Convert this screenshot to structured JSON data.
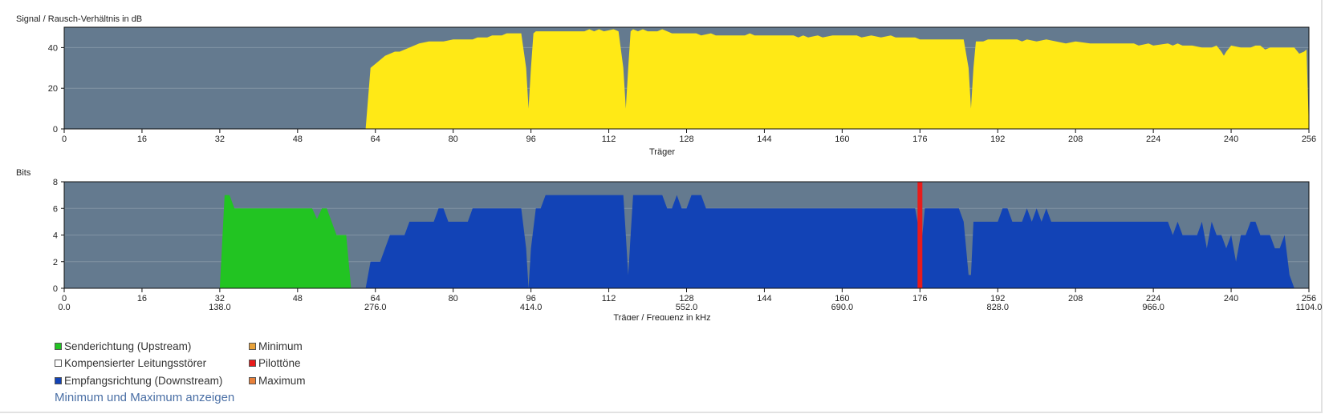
{
  "colors": {
    "plot_bg": "#647a8f",
    "snr_fill": "#ffe916",
    "upstream": "#22c422",
    "downstream": "#1243b6",
    "pilot": "#e81c1c",
    "minimum": "#e8a23a",
    "compensated": "#ffffff",
    "maximum": "#e8803a",
    "link": "#4a6fa5"
  },
  "chart_data": [
    {
      "type": "area",
      "name": "snr",
      "ylabel": "Signal / Rausch-Verhältnis in dB",
      "xlabel": "Träger",
      "xlim": [
        0,
        256
      ],
      "ylim": [
        0,
        50
      ],
      "x_ticks": [
        0,
        16,
        32,
        48,
        64,
        80,
        96,
        112,
        128,
        144,
        160,
        176,
        192,
        208,
        224,
        240,
        256
      ],
      "y_ticks": [
        0,
        20,
        40
      ],
      "grid": true,
      "series": [
        {
          "color_key": "snr_fill",
          "points": [
            [
              0,
              0
            ],
            [
              62,
              0
            ],
            [
              63,
              30
            ],
            [
              64,
              32
            ],
            [
              66,
              36
            ],
            [
              68,
              38
            ],
            [
              69,
              38
            ],
            [
              71,
              40
            ],
            [
              73,
              42
            ],
            [
              75,
              43
            ],
            [
              78,
              43
            ],
            [
              80,
              44
            ],
            [
              84,
              44
            ],
            [
              85,
              45
            ],
            [
              87,
              45
            ],
            [
              88,
              46
            ],
            [
              90,
              46
            ],
            [
              91,
              47
            ],
            [
              94,
              47
            ],
            [
              95,
              30
            ],
            [
              95.5,
              10
            ],
            [
              96,
              30
            ],
            [
              96.5,
              47
            ],
            [
              97,
              48
            ],
            [
              107,
              48
            ],
            [
              108,
              49
            ],
            [
              109,
              48
            ],
            [
              110,
              49
            ],
            [
              111,
              48
            ],
            [
              113,
              49
            ],
            [
              114,
              48
            ],
            [
              115,
              30
            ],
            [
              115.5,
              10
            ],
            [
              116,
              30
            ],
            [
              116.5,
              48
            ],
            [
              117,
              49
            ],
            [
              118,
              48
            ],
            [
              119,
              49
            ],
            [
              120,
              48
            ],
            [
              121,
              48
            ],
            [
              122,
              48
            ],
            [
              123,
              49
            ],
            [
              125,
              47
            ],
            [
              130,
              47
            ],
            [
              131,
              46
            ],
            [
              133,
              47
            ],
            [
              134,
              46
            ],
            [
              136,
              46
            ],
            [
              140,
              46
            ],
            [
              141,
              47
            ],
            [
              142,
              46
            ],
            [
              144,
              46
            ],
            [
              150,
              46
            ],
            [
              151,
              45
            ],
            [
              152,
              46
            ],
            [
              153,
              45
            ],
            [
              155,
              46
            ],
            [
              156,
              45
            ],
            [
              158,
              46
            ],
            [
              163,
              46
            ],
            [
              164,
              45
            ],
            [
              166,
              46
            ],
            [
              168,
              45
            ],
            [
              170,
              46
            ],
            [
              171,
              45
            ],
            [
              175,
              45
            ],
            [
              176,
              44
            ],
            [
              185,
              44
            ],
            [
              186,
              30
            ],
            [
              186.5,
              10
            ],
            [
              187,
              30
            ],
            [
              187.5,
              43
            ],
            [
              189,
              43
            ],
            [
              190,
              44
            ],
            [
              196,
              44
            ],
            [
              197,
              43
            ],
            [
              198,
              44
            ],
            [
              200,
              43
            ],
            [
              202,
              44
            ],
            [
              204,
              43
            ],
            [
              206,
              42
            ],
            [
              208,
              43
            ],
            [
              211,
              42
            ],
            [
              220,
              42
            ],
            [
              221,
              41
            ],
            [
              223,
              42
            ],
            [
              224,
              41
            ],
            [
              227,
              42
            ],
            [
              228,
              41
            ],
            [
              229,
              42
            ],
            [
              230,
              41
            ],
            [
              232,
              41
            ],
            [
              234,
              40
            ],
            [
              236,
              40
            ],
            [
              237,
              41
            ],
            [
              238,
              38
            ],
            [
              238.5,
              36
            ],
            [
              239,
              38
            ],
            [
              240,
              41
            ],
            [
              242,
              40
            ],
            [
              244,
              40
            ],
            [
              245,
              41
            ],
            [
              246,
              41
            ],
            [
              247,
              39
            ],
            [
              248,
              40
            ],
            [
              253,
              40
            ],
            [
              254,
              37
            ],
            [
              255,
              38
            ],
            [
              255.5,
              39
            ],
            [
              256,
              0
            ]
          ]
        }
      ]
    },
    {
      "type": "area",
      "name": "bits",
      "ylabel": "Bits",
      "xlabel": "Träger / Frequenz in kHz",
      "xlim": [
        0,
        256
      ],
      "ylim": [
        0,
        8
      ],
      "x_ticks": [
        0,
        16,
        32,
        48,
        64,
        80,
        96,
        112,
        128,
        144,
        160,
        176,
        192,
        208,
        224,
        240,
        256
      ],
      "x_ticks_secondary": [
        [
          0,
          "0.0"
        ],
        [
          32,
          "138.0"
        ],
        [
          64,
          "276.0"
        ],
        [
          96,
          "414.0"
        ],
        [
          128,
          "552.0"
        ],
        [
          160,
          "690.0"
        ],
        [
          192,
          "828.0"
        ],
        [
          224,
          "966.0"
        ],
        [
          256,
          "1104.0"
        ]
      ],
      "y_ticks": [
        0,
        2,
        4,
        6,
        8
      ],
      "grid": true,
      "series": [
        {
          "name": "Senderichtung (Upstream)",
          "color_key": "upstream",
          "points": [
            [
              32,
              0
            ],
            [
              33,
              7
            ],
            [
              34,
              7
            ],
            [
              35,
              6
            ],
            [
              48,
              6
            ],
            [
              51,
              6
            ],
            [
              52,
              5.2
            ],
            [
              53,
              6
            ],
            [
              54,
              6
            ],
            [
              56,
              4
            ],
            [
              58,
              4
            ],
            [
              59,
              0
            ]
          ]
        },
        {
          "name": "Empfangsrichtung (Downstream)",
          "color_key": "downstream",
          "points": [
            [
              62,
              0
            ],
            [
              63,
              2
            ],
            [
              65,
              2
            ],
            [
              67,
              4
            ],
            [
              70,
              4
            ],
            [
              71,
              5
            ],
            [
              76,
              5
            ],
            [
              77,
              6
            ],
            [
              78,
              6
            ],
            [
              79,
              5
            ],
            [
              83,
              5
            ],
            [
              84,
              6
            ],
            [
              94,
              6
            ],
            [
              95,
              3
            ],
            [
              95.5,
              0
            ],
            [
              96,
              3
            ],
            [
              97,
              6
            ],
            [
              98,
              6
            ],
            [
              99,
              7
            ],
            [
              115,
              7
            ],
            [
              115.5,
              4
            ],
            [
              116,
              1
            ],
            [
              116.5,
              4
            ],
            [
              117,
              7
            ],
            [
              123,
              7
            ],
            [
              124,
              6
            ],
            [
              125,
              6
            ],
            [
              126,
              7
            ],
            [
              127,
              6
            ],
            [
              128,
              6
            ],
            [
              129,
              7
            ],
            [
              131,
              7
            ],
            [
              132,
              6
            ],
            [
              175,
              6
            ],
            [
              176,
              4
            ],
            [
              176.5,
              4
            ],
            [
              177,
              6
            ],
            [
              184,
              6
            ],
            [
              185,
              5
            ],
            [
              186,
              1
            ],
            [
              186.5,
              1
            ],
            [
              187,
              5
            ],
            [
              192,
              5
            ],
            [
              193,
              6
            ],
            [
              194,
              6
            ],
            [
              195,
              5
            ],
            [
              197,
              5
            ],
            [
              198,
              6
            ],
            [
              199,
              5
            ],
            [
              200,
              6
            ],
            [
              201,
              5
            ],
            [
              202,
              6
            ],
            [
              203,
              5
            ],
            [
              227,
              5
            ],
            [
              228,
              4
            ],
            [
              229,
              5
            ],
            [
              230,
              4
            ],
            [
              233,
              4
            ],
            [
              234,
              5
            ],
            [
              235,
              3
            ],
            [
              236,
              5
            ],
            [
              237,
              4
            ],
            [
              238,
              4
            ],
            [
              239,
              3
            ],
            [
              240,
              4
            ],
            [
              241,
              2
            ],
            [
              242,
              4
            ],
            [
              243,
              4
            ],
            [
              244,
              5
            ],
            [
              245,
              5
            ],
            [
              246,
              4
            ],
            [
              248,
              4
            ],
            [
              249,
              3
            ],
            [
              250,
              3
            ],
            [
              251,
              4
            ],
            [
              252,
              1
            ],
            [
              253,
              0
            ]
          ]
        },
        {
          "name": "Pilottöne",
          "color_key": "pilot",
          "bar": {
            "x": 176,
            "value": 8
          }
        }
      ]
    }
  ],
  "legend": {
    "col1": [
      {
        "label": "Senderichtung (Upstream)",
        "color_key": "upstream"
      },
      {
        "label": "Kompensierter Leitungsstörer",
        "color_key": "compensated"
      },
      {
        "label": "Empfangsrichtung (Downstream)",
        "color_key": "downstream"
      }
    ],
    "col2": [
      {
        "label": "Minimum",
        "color_key": "minimum"
      },
      {
        "label": "Pilottöne",
        "color_key": "pilot"
      },
      {
        "label": "Maximum",
        "color_key": "maximum"
      }
    ]
  },
  "link": {
    "label": "Minimum und Maximum anzeigen"
  }
}
